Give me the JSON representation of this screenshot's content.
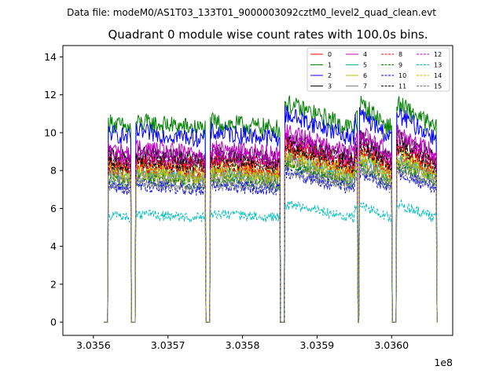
{
  "figure": {
    "suptitle": "Data file: modeM0/AS1T03_133T01_9000003092cztM0_level2_quad_clean.evt"
  },
  "chart_data": {
    "type": "line",
    "title": "Quadrant 0 module wise count rates with 100.0s bins.",
    "xlabel": "",
    "ylabel": "",
    "x_offset_label": "1e8",
    "xlim": [
      303555900,
      303608200
    ],
    "ylim": [
      -0.7,
      14.6
    ],
    "xticks": [
      303560000,
      303570000,
      303580000,
      303590000,
      303600000
    ],
    "xtick_labels": [
      "3.0356",
      "3.0357",
      "3.0358",
      "3.0359",
      "3.0360"
    ],
    "yticks": [
      0,
      2,
      4,
      6,
      8,
      10,
      12,
      14
    ],
    "ytick_labels": [
      "0",
      "2",
      "4",
      "6",
      "8",
      "10",
      "12",
      "14"
    ],
    "grid": false,
    "legend_position": "top-right",
    "legend_columns": 4,
    "on_segments": [
      [
        303562000,
        303565000
      ],
      [
        303565700,
        303575000
      ],
      [
        303575700,
        303585000
      ],
      [
        303585700,
        303595000
      ],
      [
        303595700,
        303600000
      ],
      [
        303600700,
        303606000
      ]
    ],
    "spikes": [
      [
        303593900,
        303594300
      ],
      [
        303595000,
        303595400
      ],
      [
        303599500,
        303599900
      ]
    ],
    "series": [
      {
        "name": "0",
        "color": "#ff0000",
        "dash": "solid",
        "level": 8.3
      },
      {
        "name": "1",
        "color": "#008000",
        "dash": "solid",
        "level": 10.2
      },
      {
        "name": "2",
        "color": "#0000ff",
        "dash": "solid",
        "level": 9.7
      },
      {
        "name": "3",
        "color": "#000000",
        "dash": "solid",
        "level": 8.6
      },
      {
        "name": "4",
        "color": "#c000c0",
        "dash": "solid",
        "level": 8.9
      },
      {
        "name": "5",
        "color": "#20b2aa",
        "dash": "solid",
        "level": 7.7
      },
      {
        "name": "6",
        "color": "#bfbf00",
        "dash": "solid",
        "level": 7.9
      },
      {
        "name": "7",
        "color": "#808080",
        "dash": "solid",
        "level": 7.5
      },
      {
        "name": "8",
        "color": "#ff0000",
        "dash": "dashed",
        "level": 8.0
      },
      {
        "name": "9",
        "color": "#008000",
        "dash": "dashed",
        "level": 7.3
      },
      {
        "name": "10",
        "color": "#0000ff",
        "dash": "dashed",
        "level": 7.0
      },
      {
        "name": "11",
        "color": "#000000",
        "dash": "dashed",
        "level": 8.2
      },
      {
        "name": "12",
        "color": "#c000c0",
        "dash": "dashed",
        "level": 8.5
      },
      {
        "name": "13",
        "color": "#00bfbf",
        "dash": "dashed",
        "level": 5.5
      },
      {
        "name": "14",
        "color": "#bfbf00",
        "dash": "dashed",
        "level": 7.6
      },
      {
        "name": "15",
        "color": "#808080",
        "dash": "dashed",
        "level": 7.1
      }
    ]
  }
}
